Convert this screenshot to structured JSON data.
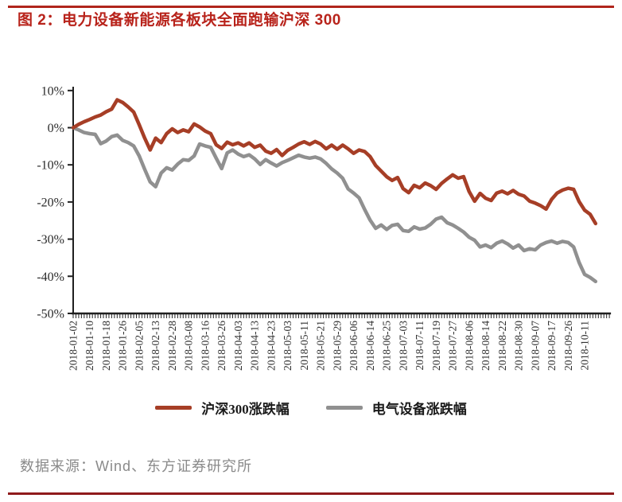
{
  "page": {
    "title": "图 2：电力设备新能源各板块全面跑输沪深 300",
    "source": "数据来源：Wind、东方证券研究所",
    "colors": {
      "title_red": "#b8231b",
      "top_rule": "#b0251c",
      "bottom_rule": "#8f1a1b",
      "axis": "#1f1f1f",
      "source_text": "#8a8a8a"
    }
  },
  "chart_data": {
    "type": "line",
    "title": "",
    "xlabel": "",
    "ylabel": "",
    "y_unit": "%",
    "ylim": [
      -50,
      10
    ],
    "grid": false,
    "legend_position": "bottom",
    "y_ticks": [
      {
        "label": "10%",
        "value": 10
      },
      {
        "label": "0%",
        "value": 0
      },
      {
        "label": "-10%",
        "value": -10
      },
      {
        "label": "-20%",
        "value": -20
      },
      {
        "label": "-30%",
        "value": -30
      },
      {
        "label": "-40%",
        "value": -40
      },
      {
        "label": "-50%",
        "value": -50
      }
    ],
    "x_tick_labels": [
      "2018-01-02",
      "2018-01-10",
      "2018-01-18",
      "2018-01-26",
      "2018-02-05",
      "2018-02-13",
      "2018-02-28",
      "2018-03-08",
      "2018-03-16",
      "2018-03-26",
      "2018-04-03",
      "2018-04-13",
      "2018-04-23",
      "2018-05-03",
      "2018-05-11",
      "2018-05-21",
      "2018-05-29",
      "2018-06-06",
      "2018-06-14",
      "2018-06-25",
      "2018-07-03",
      "2018-07-11",
      "2018-07-19",
      "2018-07-27",
      "2018-08-06",
      "2018-08-14",
      "2018-08-22",
      "2018-08-30",
      "2018-09-07",
      "2018-09-17",
      "2018-09-26",
      "2018-10-11"
    ],
    "label_day_step": 6,
    "axis_days": 196,
    "x_days": [
      0,
      2,
      4,
      6,
      8,
      10,
      12,
      14,
      16,
      18,
      20,
      22,
      24,
      26,
      28,
      30,
      32,
      34,
      36,
      38,
      40,
      42,
      44,
      46,
      48,
      50,
      52,
      54,
      56,
      58,
      60,
      62,
      64,
      66,
      68,
      70,
      72,
      74,
      76,
      78,
      80,
      82,
      84,
      86,
      88,
      90,
      92,
      94,
      96,
      98,
      100,
      102,
      104,
      106,
      108,
      110,
      112,
      114,
      116,
      118,
      120,
      122,
      124,
      126,
      128,
      130,
      132,
      134,
      136,
      138,
      140,
      142,
      144,
      146,
      148,
      150,
      152,
      154,
      156,
      158,
      160,
      162,
      164,
      166,
      168,
      170,
      172,
      174,
      176,
      178,
      180,
      182,
      184,
      186,
      188,
      190
    ],
    "series": [
      {
        "id": "csi300",
        "name": "沪深300涨跌幅",
        "color": "#a63e26",
        "values": [
          0.0,
          0.9,
          1.6,
          2.2,
          2.9,
          3.4,
          4.3,
          5.0,
          7.5,
          6.8,
          5.6,
          4.2,
          0.8,
          -2.8,
          -6.0,
          -2.8,
          -4.0,
          -1.6,
          -0.3,
          -1.3,
          -0.6,
          -1.1,
          1.0,
          0.2,
          -0.9,
          -1.6,
          -4.6,
          -5.6,
          -3.9,
          -4.6,
          -4.1,
          -4.9,
          -4.1,
          -5.3,
          -4.7,
          -6.3,
          -6.9,
          -5.9,
          -7.5,
          -6.1,
          -5.3,
          -4.4,
          -3.8,
          -4.5,
          -3.7,
          -4.4,
          -5.7,
          -4.7,
          -5.8,
          -4.7,
          -5.7,
          -6.9,
          -6.0,
          -6.4,
          -7.8,
          -10.2,
          -11.7,
          -13.2,
          -14.2,
          -13.4,
          -16.4,
          -17.5,
          -15.5,
          -16.2,
          -14.9,
          -15.6,
          -16.6,
          -15.0,
          -13.8,
          -12.7,
          -13.6,
          -13.2,
          -17.2,
          -19.8,
          -17.7,
          -19.0,
          -19.6,
          -17.6,
          -17.1,
          -17.8,
          -16.9,
          -17.9,
          -18.4,
          -19.8,
          -20.3,
          -21.0,
          -21.9,
          -19.3,
          -17.6,
          -16.8,
          -16.3,
          -16.6,
          -19.9,
          -22.2,
          -23.3,
          -25.8
        ]
      },
      {
        "id": "electrical",
        "name": "电气设备涨跌幅",
        "color": "#909090",
        "values": [
          0.0,
          -0.6,
          -1.3,
          -1.6,
          -1.8,
          -4.3,
          -3.6,
          -2.4,
          -2.0,
          -3.4,
          -4.0,
          -4.9,
          -7.6,
          -11.2,
          -14.6,
          -15.9,
          -12.2,
          -10.8,
          -11.4,
          -9.8,
          -8.6,
          -8.8,
          -7.6,
          -4.4,
          -4.9,
          -5.3,
          -8.2,
          -11.0,
          -6.8,
          -6.0,
          -7.1,
          -7.8,
          -7.3,
          -8.4,
          -9.9,
          -8.6,
          -9.5,
          -10.3,
          -9.4,
          -8.8,
          -8.1,
          -7.4,
          -7.9,
          -8.2,
          -7.9,
          -8.4,
          -9.6,
          -11.1,
          -12.2,
          -13.6,
          -16.5,
          -17.6,
          -18.9,
          -22.0,
          -24.9,
          -27.1,
          -26.2,
          -27.4,
          -26.3,
          -26.0,
          -27.7,
          -27.9,
          -26.7,
          -27.3,
          -27.0,
          -26.0,
          -24.6,
          -24.1,
          -25.6,
          -26.2,
          -27.1,
          -28.1,
          -29.5,
          -30.3,
          -32.1,
          -31.6,
          -32.3,
          -31.1,
          -30.5,
          -31.3,
          -32.4,
          -31.6,
          -33.1,
          -32.6,
          -32.9,
          -31.6,
          -30.9,
          -30.5,
          -31.1,
          -30.6,
          -30.9,
          -32.1,
          -36.3,
          -39.5,
          -40.3,
          -41.4
        ]
      }
    ]
  }
}
